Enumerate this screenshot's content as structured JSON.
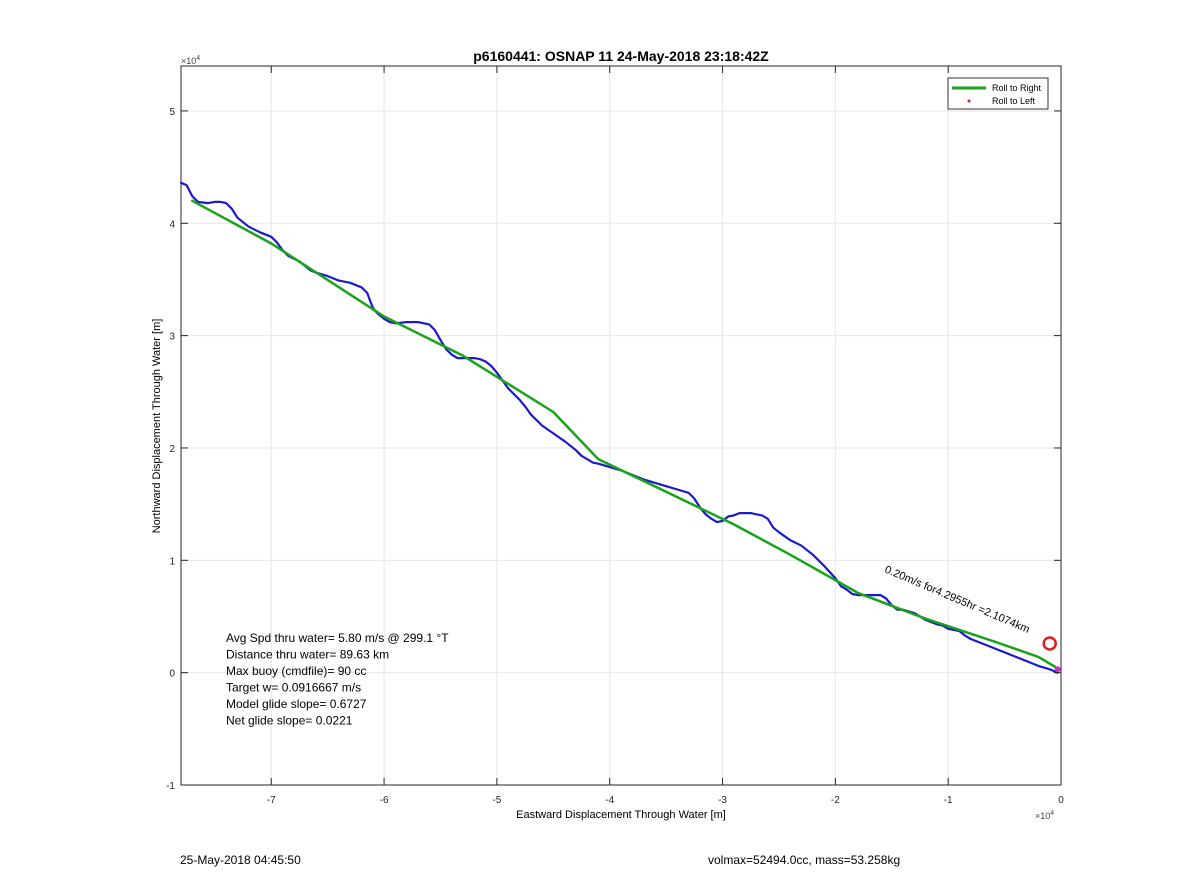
{
  "footer": {
    "timestamp": "25-May-2018 04:45:50",
    "vol_mass": "volmax=52494.0cc, mass=53.258kg"
  },
  "chart_data": {
    "type": "line",
    "title": "p6160441: OSNAP 11 24-May-2018 23:18:42Z",
    "xlabel": "Eastward Displacement Through Water [m]",
    "ylabel": "Northward Displacement Through Water [m]",
    "x_exponent_label": "×10",
    "x_exponent_power": "4",
    "y_exponent_label": "×10",
    "y_exponent_power": "4",
    "xlim": [
      -78000,
      0
    ],
    "ylim": [
      -10000,
      54000
    ],
    "grid": true,
    "x_ticks": [
      -70000,
      -60000,
      -50000,
      -40000,
      -30000,
      -20000,
      -10000,
      0
    ],
    "x_tick_labels": [
      "-7",
      "-6",
      "-5",
      "-4",
      "-3",
      "-2",
      "-1",
      "0"
    ],
    "y_ticks": [
      -10000,
      0,
      10000,
      20000,
      30000,
      40000,
      50000
    ],
    "y_tick_labels": [
      "-1",
      "0",
      "1",
      "2",
      "3",
      "4",
      "5"
    ],
    "legend": {
      "position": "top-right",
      "entries": [
        {
          "label": "Roll to Right",
          "color": "#1aa31a",
          "style": "line"
        },
        {
          "label": "Roll to Left",
          "color": "#e02020",
          "style": "dot"
        }
      ]
    },
    "series": [
      {
        "name": "Roll to Right",
        "color": "#1aa31a",
        "x": [
          -77000,
          -70000,
          -60000,
          -53000,
          -45000,
          -41000,
          -35000,
          -29000,
          -24000,
          -18000,
          -12000,
          -6000,
          -2000,
          -500
        ],
        "y": [
          42000,
          38200,
          31700,
          28200,
          23200,
          19000,
          16100,
          13200,
          10500,
          7100,
          4800,
          2800,
          1400,
          500
        ]
      },
      {
        "color": "#1a1acc",
        "x": [
          -78000,
          -77500,
          -77000,
          -76500,
          -75600,
          -75000,
          -74500,
          -74000,
          -73500,
          -73000,
          -72000,
          -71000,
          -70000,
          -69500,
          -69000,
          -68500,
          -67500,
          -67000,
          -66500,
          -66000,
          -65000,
          -64000,
          -63000,
          -62500,
          -62000,
          -61500,
          -61200,
          -61000,
          -60800,
          -60500,
          -60000,
          -59500,
          -59000,
          -58000,
          -57000,
          -56000,
          -55500,
          -55000,
          -54500,
          -54000,
          -53500,
          -53000,
          -52500,
          -52000,
          -51500,
          -51000,
          -50500,
          -50000,
          -49000,
          -48000,
          -47500,
          -47000,
          -46000,
          -45000,
          -44000,
          -43000,
          -42500,
          -42000,
          -41500,
          -41000,
          -40000,
          -39000,
          -38000,
          -37000,
          -36000,
          -35000,
          -34000,
          -33000,
          -32500,
          -32000,
          -31500,
          -31000,
          -30500,
          -30000,
          -29500,
          -29000,
          -28500,
          -28000,
          -27500,
          -27000,
          -26500,
          -26000,
          -25500,
          -25000,
          -24000,
          -23000,
          -22000,
          -21000,
          -20000,
          -19500,
          -19000,
          -18500,
          -18000,
          -17000,
          -16000,
          -15500,
          -15000,
          -14500,
          -14000,
          -13000,
          -12500,
          -12000,
          -11000,
          -10500,
          -10000,
          -9000,
          -8500,
          -8000,
          -7000,
          -6000,
          -5000,
          -4000,
          -3000,
          -2000,
          -1000,
          -300
        ],
        "y": [
          43600,
          43400,
          42400,
          41900,
          41800,
          41900,
          41900,
          41800,
          41300,
          40500,
          39700,
          39200,
          38800,
          38300,
          37600,
          37100,
          36600,
          36200,
          35800,
          35600,
          35300,
          34900,
          34700,
          34500,
          34300,
          33800,
          33000,
          32500,
          32200,
          31900,
          31500,
          31200,
          31100,
          31200,
          31200,
          31000,
          30500,
          29600,
          28800,
          28300,
          28000,
          28000,
          28000,
          28000,
          27900,
          27700,
          27300,
          26700,
          25300,
          24300,
          23700,
          23000,
          22000,
          21300,
          20600,
          19800,
          19300,
          19000,
          18700,
          18600,
          18300,
          18000,
          17600,
          17200,
          16900,
          16600,
          16300,
          16000,
          15500,
          14700,
          14100,
          13700,
          13400,
          13500,
          13900,
          14000,
          14200,
          14200,
          14200,
          14100,
          14000,
          13700,
          12900,
          12500,
          11800,
          11300,
          10500,
          9500,
          8400,
          7700,
          7400,
          7000,
          6900,
          6900,
          6900,
          6600,
          6000,
          5600,
          5600,
          5300,
          5000,
          4700,
          4300,
          4200,
          3900,
          3700,
          3300,
          3000,
          2600,
          2200,
          1800,
          1400,
          1000,
          600,
          300,
          0
        ]
      }
    ],
    "markers": [
      {
        "type": "circle",
        "x": -1000,
        "y": 2600,
        "color": "#e02020"
      },
      {
        "type": "dot",
        "x": -300,
        "y": 300,
        "color": "#cc33cc"
      }
    ],
    "annotations": [
      {
        "text": "Avg Spd thru water=  5.80 m/s @ 299.1 °T"
      },
      {
        "text": "Distance thru water= 89.63 km"
      },
      {
        "text": "Max buoy (cmdfile)= 90 cc"
      },
      {
        "text": "Target w= 0.0916667 m/s"
      },
      {
        "text": "Model glide slope= 0.6727"
      },
      {
        "text": "Net glide slope= 0.0221"
      }
    ],
    "rotated_annotation": "0.20m/s for4.2955hr =2.1074km"
  }
}
